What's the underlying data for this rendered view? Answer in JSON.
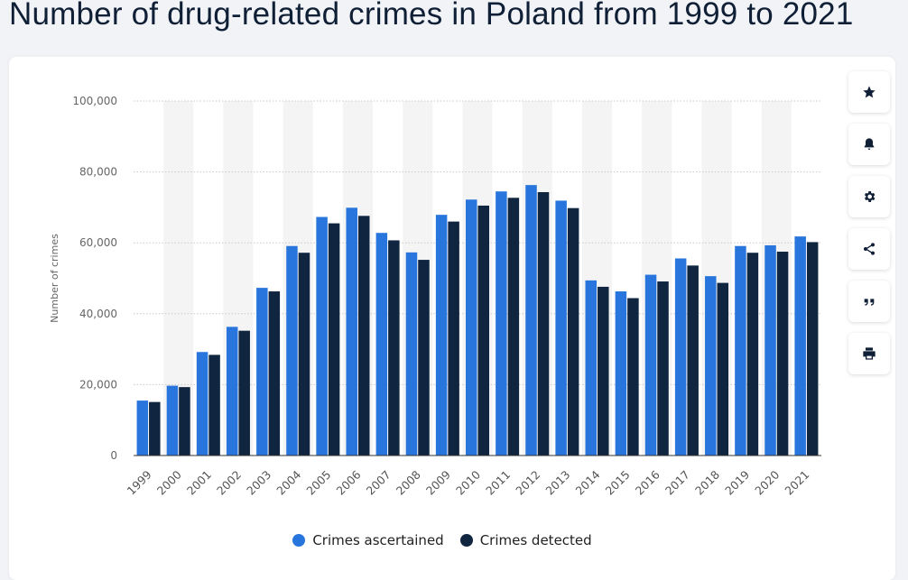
{
  "page": {
    "title": "Number of drug-related crimes in Poland from 1999 to 2021"
  },
  "toolbar": {
    "buttons": [
      {
        "name": "favorite",
        "icon": "star-icon"
      },
      {
        "name": "notification",
        "icon": "bell-icon"
      },
      {
        "name": "settings",
        "icon": "gear-icon"
      },
      {
        "name": "share",
        "icon": "share-icon"
      },
      {
        "name": "cite",
        "icon": "quote-icon"
      },
      {
        "name": "print",
        "icon": "printer-icon"
      }
    ]
  },
  "chart_data": {
    "type": "bar",
    "title": "Number of drug-related crimes in Poland from 1999 to 2021",
    "xlabel": "",
    "ylabel": "Number of crimes",
    "ylim": [
      0,
      100000
    ],
    "yticks": [
      0,
      20000,
      40000,
      60000,
      80000,
      100000
    ],
    "ytick_labels": [
      "0",
      "20,000",
      "40,000",
      "60,000",
      "80,000",
      "100,000"
    ],
    "categories": [
      "1999",
      "2000",
      "2001",
      "2002",
      "2003",
      "2004",
      "2005",
      "2006",
      "2007",
      "2008",
      "2009",
      "2010",
      "2011",
      "2012",
      "2013",
      "2014",
      "2015",
      "2016",
      "2017",
      "2018",
      "2019",
      "2020",
      "2021"
    ],
    "series": [
      {
        "name": "Crimes ascertained",
        "color": "#2876dd",
        "values": [
          15500,
          19700,
          29200,
          36300,
          47300,
          59100,
          67300,
          69900,
          62800,
          57300,
          67900,
          72200,
          74500,
          76300,
          71900,
          49400,
          46300,
          51000,
          55600,
          50600,
          59100,
          59300,
          61800
        ]
      },
      {
        "name": "Crimes detected",
        "color": "#0f2540",
        "values": [
          15100,
          19300,
          28400,
          35200,
          46300,
          57200,
          65500,
          67600,
          60700,
          55200,
          66000,
          70500,
          72700,
          74300,
          69800,
          47600,
          44400,
          49100,
          53600,
          48700,
          57200,
          57500,
          60200
        ]
      }
    ],
    "grid": true,
    "legend_position": "bottom-center"
  }
}
